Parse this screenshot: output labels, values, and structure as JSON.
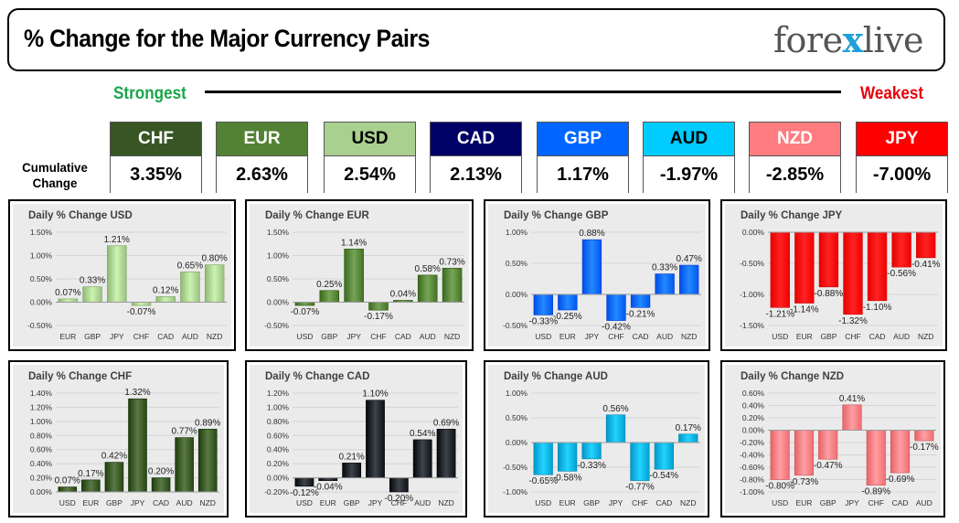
{
  "header": {
    "title": "% Change for the Major Currency Pairs",
    "logo_prefix": "fore",
    "logo_x": "x",
    "logo_suffix": "live"
  },
  "ranking": {
    "strongest_label": "Strongest",
    "weakest_label": "Weakest",
    "cumulative_line1": "Cumulative",
    "cumulative_line2": "Change",
    "currencies": [
      {
        "name": "CHF",
        "value": "3.35%",
        "bg": "#375623",
        "fg": "#ffffff"
      },
      {
        "name": "EUR",
        "value": "2.63%",
        "bg": "#548235",
        "fg": "#ffffff"
      },
      {
        "name": "USD",
        "value": "2.54%",
        "bg": "#a9d08e",
        "fg": "#000000"
      },
      {
        "name": "CAD",
        "value": "2.13%",
        "bg": "#000066",
        "fg": "#ffffff"
      },
      {
        "name": "GBP",
        "value": "1.17%",
        "bg": "#0066ff",
        "fg": "#ffffff"
      },
      {
        "name": "AUD",
        "value": "-1.97%",
        "bg": "#00ccff",
        "fg": "#000000"
      },
      {
        "name": "NZD",
        "value": "-2.85%",
        "bg": "#ff7c80",
        "fg": "#ffffff"
      },
      {
        "name": "JPY",
        "value": "-7.00%",
        "bg": "#ff0000",
        "fg": "#ffffff"
      }
    ]
  },
  "chart_data": [
    {
      "type": "bar",
      "title": "Daily % Change USD",
      "categories": [
        "EUR",
        "GBP",
        "JPY",
        "CHF",
        "CAD",
        "AUD",
        "NZD"
      ],
      "values": [
        0.07,
        0.33,
        1.21,
        -0.07,
        0.12,
        0.65,
        0.8
      ],
      "labels": [
        "0.07%",
        "0.33%",
        "1.21%",
        "-0.07%",
        "0.12%",
        "0.65%",
        "0.80%"
      ],
      "ylim": [
        -0.5,
        1.5
      ],
      "yticks": [
        -0.5,
        0,
        0.5,
        1.0,
        1.5
      ],
      "ytick_labels": [
        "-0.50%",
        "0.00%",
        "0.50%",
        "1.00%",
        "1.50%"
      ],
      "color": "#a9d08e"
    },
    {
      "type": "bar",
      "title": "Daily % Change EUR",
      "categories": [
        "USD",
        "GBP",
        "JPY",
        "CHF",
        "CAD",
        "AUD",
        "NZD"
      ],
      "values": [
        -0.07,
        0.25,
        1.14,
        -0.17,
        0.04,
        0.58,
        0.73
      ],
      "labels": [
        "-0.07%",
        "0.25%",
        "1.14%",
        "-0.17%",
        "0.04%",
        "0.58%",
        "0.73%"
      ],
      "ylim": [
        -0.5,
        1.5
      ],
      "yticks": [
        -0.5,
        0,
        0.5,
        1.0,
        1.5
      ],
      "ytick_labels": [
        "-0.50%",
        "0.00%",
        "0.50%",
        "1.00%",
        "1.50%"
      ],
      "color": "#548235"
    },
    {
      "type": "bar",
      "title": "Daily % Change GBP",
      "categories": [
        "USD",
        "EUR",
        "JPY",
        "CHF",
        "CAD",
        "AUD",
        "NZD"
      ],
      "values": [
        -0.33,
        -0.25,
        0.88,
        -0.42,
        -0.21,
        0.33,
        0.47
      ],
      "labels": [
        "-0.33%",
        "-0.25%",
        "0.88%",
        "-0.42%",
        "-0.21%",
        "0.33%",
        "0.47%"
      ],
      "ylim": [
        -0.5,
        1.0
      ],
      "yticks": [
        -0.5,
        0,
        0.5,
        1.0
      ],
      "ytick_labels": [
        "-0.50%",
        "0.00%",
        "0.50%",
        "1.00%"
      ],
      "color": "#0066ff"
    },
    {
      "type": "bar",
      "title": "Daily % Change JPY",
      "categories": [
        "USD",
        "EUR",
        "GBP",
        "CHF",
        "CAD",
        "AUD",
        "NZD"
      ],
      "values": [
        -1.21,
        -1.14,
        -0.88,
        -1.32,
        -1.1,
        -0.56,
        -0.41
      ],
      "labels": [
        "-1.21%",
        "-1.14%",
        "-0.88%",
        "-1.32%",
        "-1.10%",
        "-0.56%",
        "-0.41%"
      ],
      "ylim": [
        -1.5,
        0
      ],
      "yticks": [
        -1.5,
        -1.0,
        -0.5,
        0
      ],
      "ytick_labels": [
        "-1.50%",
        "-1.00%",
        "-0.50%",
        "0.00%"
      ],
      "color": "#ff0000"
    },
    {
      "type": "bar",
      "title": "Daily % Change CHF",
      "categories": [
        "USD",
        "EUR",
        "GBP",
        "JPY",
        "CAD",
        "AUD",
        "NZD"
      ],
      "values": [
        0.07,
        0.17,
        0.42,
        1.32,
        0.2,
        0.77,
        0.89
      ],
      "labels": [
        "0.07%",
        "0.17%",
        "0.42%",
        "1.32%",
        "0.20%",
        "0.77%",
        "0.89%"
      ],
      "ylim": [
        0,
        1.4
      ],
      "yticks": [
        0,
        0.2,
        0.4,
        0.6,
        0.8,
        1.0,
        1.2,
        1.4
      ],
      "ytick_labels": [
        "0.00%",
        "0.20%",
        "0.40%",
        "0.60%",
        "0.80%",
        "1.00%",
        "1.20%",
        "1.40%"
      ],
      "color": "#375623"
    },
    {
      "type": "bar",
      "title": "Daily % Change CAD",
      "categories": [
        "USD",
        "EUR",
        "GBP",
        "JPY",
        "CHF",
        "AUD",
        "NZD"
      ],
      "values": [
        -0.12,
        -0.04,
        0.21,
        1.1,
        -0.2,
        0.54,
        0.69
      ],
      "labels": [
        "-0.12%",
        "-0.04%",
        "0.21%",
        "1.10%",
        "-0.20%",
        "0.54%",
        "0.69%"
      ],
      "ylim": [
        -0.2,
        1.2
      ],
      "yticks": [
        -0.2,
        0,
        0.2,
        0.4,
        0.6,
        0.8,
        1.0,
        1.2
      ],
      "ytick_labels": [
        "-0.20%",
        "0.00%",
        "0.20%",
        "0.40%",
        "0.60%",
        "0.80%",
        "1.00%",
        "1.20%"
      ],
      "color": "#1b2027"
    },
    {
      "type": "bar",
      "title": "Daily % Change AUD",
      "categories": [
        "USD",
        "EUR",
        "GBP",
        "JPY",
        "CHF",
        "CAD",
        "NZD"
      ],
      "values": [
        -0.65,
        -0.58,
        -0.33,
        0.56,
        -0.77,
        -0.54,
        0.17
      ],
      "labels": [
        "-0.65%",
        "-0.58%",
        "-0.33%",
        "0.56%",
        "-0.77%",
        "-0.54%",
        "0.17%"
      ],
      "ylim": [
        -1.0,
        1.0
      ],
      "yticks": [
        -1.0,
        -0.5,
        0,
        0.5,
        1.0
      ],
      "ytick_labels": [
        "-1.00%",
        "-0.50%",
        "0.00%",
        "0.50%",
        "1.00%"
      ],
      "color": "#00b0e0"
    },
    {
      "type": "bar",
      "title": "Daily % Change NZD",
      "categories": [
        "USD",
        "EUR",
        "GBP",
        "JPY",
        "CHF",
        "CAD",
        "AUD"
      ],
      "values": [
        -0.8,
        -0.73,
        -0.47,
        0.41,
        -0.89,
        -0.69,
        -0.17
      ],
      "labels": [
        "-0.80%",
        "-0.73%",
        "-0.47%",
        "0.41%",
        "-0.89%",
        "-0.69%",
        "-0.17%"
      ],
      "ylim": [
        -1.0,
        0.6
      ],
      "yticks": [
        -1.0,
        -0.8,
        -0.6,
        -0.4,
        -0.2,
        0,
        0.2,
        0.4,
        0.6
      ],
      "ytick_labels": [
        "-1.00%",
        "-0.80%",
        "-0.60%",
        "-0.40%",
        "-0.20%",
        "0.00%",
        "0.20%",
        "0.40%",
        "0.60%"
      ],
      "color": "#ff7c80"
    }
  ]
}
